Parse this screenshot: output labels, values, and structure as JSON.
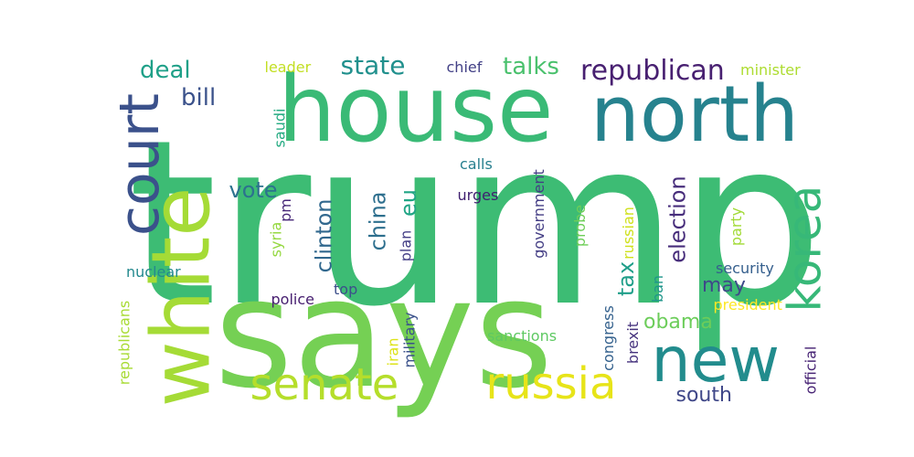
{
  "words": [
    {
      "text": "trump",
      "color": "#3dbc74"
    },
    {
      "text": "says",
      "color": "#75d054"
    },
    {
      "text": "house",
      "color": "#3aba76"
    },
    {
      "text": "north",
      "color": "#26828e"
    },
    {
      "text": "white",
      "color": "#a5db36"
    },
    {
      "text": "new",
      "color": "#228c8d"
    },
    {
      "text": "court",
      "color": "#3b518b"
    },
    {
      "text": "korea",
      "color": "#37b878"
    },
    {
      "text": "senate",
      "color": "#b5de2b"
    },
    {
      "text": "russia",
      "color": "#e7e419"
    },
    {
      "text": "republican",
      "color": "#482071"
    },
    {
      "text": "state",
      "color": "#21908d"
    },
    {
      "text": "talks",
      "color": "#4ac16d"
    },
    {
      "text": "deal",
      "color": "#1fa088"
    },
    {
      "text": "bill",
      "color": "#3b528b"
    },
    {
      "text": "election",
      "color": "#472d7b"
    },
    {
      "text": "clinton",
      "color": "#31688e"
    },
    {
      "text": "china",
      "color": "#2e6f8e"
    },
    {
      "text": "eu",
      "color": "#21a585"
    },
    {
      "text": "vote",
      "color": "#2c728e"
    },
    {
      "text": "tax",
      "color": "#1f9e89"
    },
    {
      "text": "obama",
      "color": "#6ccd5a"
    },
    {
      "text": "may",
      "color": "#3e4989"
    },
    {
      "text": "south",
      "color": "#3f4788"
    },
    {
      "text": "chief",
      "color": "#424086"
    },
    {
      "text": "leader",
      "color": "#c2df23"
    },
    {
      "text": "minister",
      "color": "#addc30"
    },
    {
      "text": "saudi",
      "color": "#25ab82"
    },
    {
      "text": "calls",
      "color": "#277f8e"
    },
    {
      "text": "urges",
      "color": "#3f1e6f"
    },
    {
      "text": "pm",
      "color": "#472878"
    },
    {
      "text": "syria",
      "color": "#95d840"
    },
    {
      "text": "plan",
      "color": "#433e85"
    },
    {
      "text": "government",
      "color": "#433d84"
    },
    {
      "text": "probe",
      "color": "#6ece58"
    },
    {
      "text": "russian",
      "color": "#cfe11c"
    },
    {
      "text": "party",
      "color": "#a2da37"
    },
    {
      "text": "nuclear",
      "color": "#23898e"
    },
    {
      "text": "police",
      "color": "#482071"
    },
    {
      "text": "top",
      "color": "#3c4f8a"
    },
    {
      "text": "security",
      "color": "#355f8d"
    },
    {
      "text": "ban",
      "color": "#1f968b"
    },
    {
      "text": "president",
      "color": "#fde725"
    },
    {
      "text": "republicans",
      "color": "#a8db34"
    },
    {
      "text": "iran",
      "color": "#dde318"
    },
    {
      "text": "military",
      "color": "#3b528b"
    },
    {
      "text": "sanctions",
      "color": "#5ec962"
    },
    {
      "text": "congress",
      "color": "#34618d"
    },
    {
      "text": "brexit",
      "color": "#46337e"
    },
    {
      "text": "official",
      "color": "#482475"
    }
  ]
}
